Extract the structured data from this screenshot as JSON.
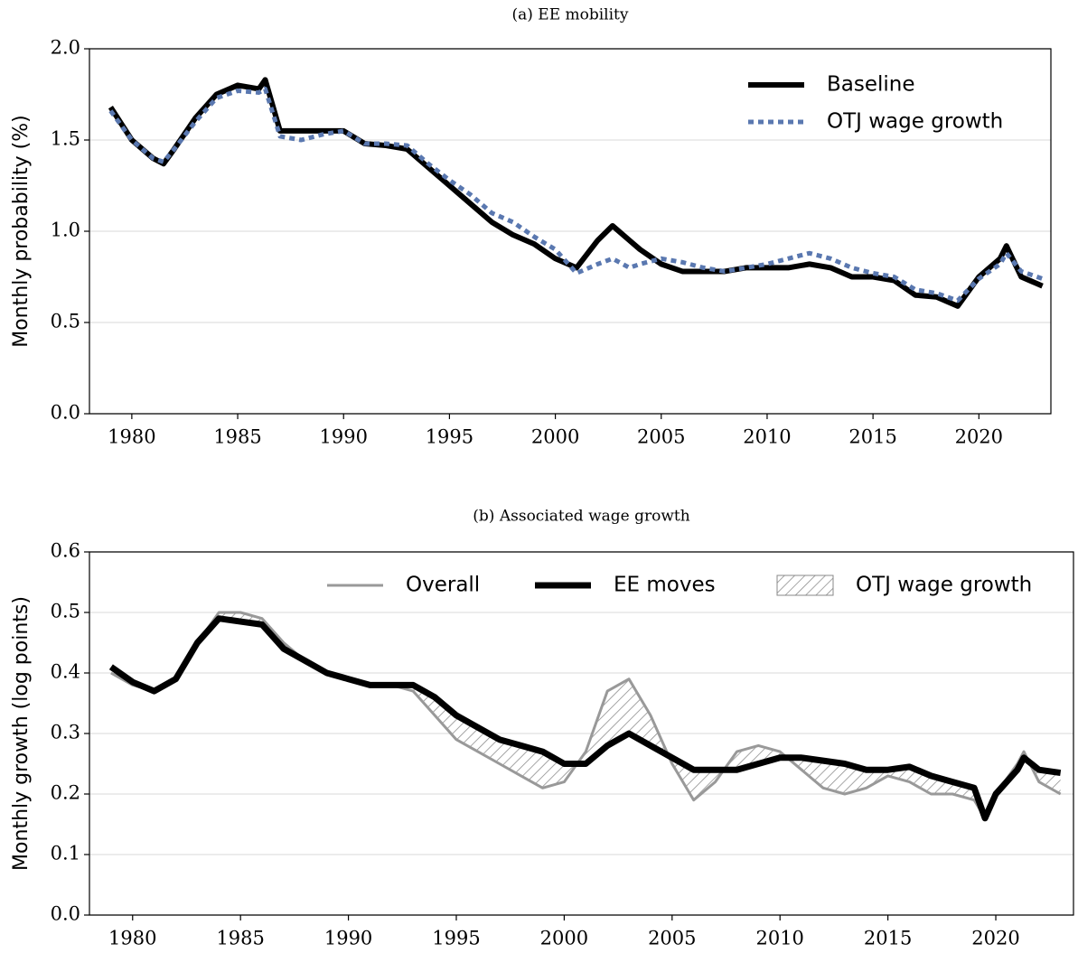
{
  "chart_data": [
    {
      "type": "line",
      "title": "(a) EE mobility",
      "ylabel": "Monthly probability (%)",
      "x": [
        1979,
        1980,
        1981,
        1981.5,
        1982,
        1983,
        1984,
        1985,
        1986,
        1986.3,
        1987,
        1988,
        1989,
        1990,
        1991,
        1992,
        1993,
        1994,
        1995,
        1996,
        1997,
        1998,
        1999,
        2000,
        2001,
        2002,
        2002.7,
        2003.5,
        2004,
        2005,
        2006,
        2007,
        2008,
        2009,
        2010,
        2011,
        2012,
        2013,
        2014,
        2015,
        2016,
        2017,
        2018,
        2019,
        2020,
        2021,
        2021.3,
        2022,
        2023
      ],
      "series": [
        {
          "name": "Baseline",
          "color": "#000000",
          "linewidth": 6,
          "linestyle": "solid",
          "values": [
            1.68,
            1.5,
            1.4,
            1.37,
            1.45,
            1.62,
            1.75,
            1.8,
            1.78,
            1.83,
            1.55,
            1.55,
            1.55,
            1.55,
            1.48,
            1.47,
            1.45,
            1.35,
            1.25,
            1.15,
            1.05,
            0.98,
            0.93,
            0.85,
            0.8,
            0.95,
            1.03,
            0.95,
            0.9,
            0.82,
            0.78,
            0.78,
            0.78,
            0.8,
            0.8,
            0.8,
            0.82,
            0.8,
            0.75,
            0.75,
            0.73,
            0.65,
            0.64,
            0.59,
            0.75,
            0.85,
            0.92,
            0.75,
            0.7
          ]
        },
        {
          "name": "OTJ wage growth",
          "color": "#5a78b0",
          "linewidth": 5,
          "linestyle": "dashed",
          "values": [
            1.66,
            1.5,
            1.4,
            1.38,
            1.45,
            1.6,
            1.73,
            1.77,
            1.76,
            1.78,
            1.52,
            1.5,
            1.53,
            1.55,
            1.48,
            1.48,
            1.47,
            1.37,
            1.28,
            1.2,
            1.1,
            1.05,
            0.97,
            0.9,
            0.77,
            0.82,
            0.85,
            0.8,
            0.82,
            0.85,
            0.83,
            0.8,
            0.78,
            0.8,
            0.82,
            0.85,
            0.88,
            0.85,
            0.8,
            0.77,
            0.75,
            0.68,
            0.66,
            0.62,
            0.74,
            0.82,
            0.88,
            0.78,
            0.74
          ]
        }
      ],
      "xlim": [
        1978,
        2023.4
      ],
      "xticks": [
        1980,
        1985,
        1990,
        1995,
        2000,
        2005,
        2010,
        2015,
        2020
      ],
      "ylim": [
        0,
        2
      ],
      "yticks": [
        {
          "value": 0,
          "label": "0.0"
        },
        0.5,
        {
          "value": 1,
          "label": "1.0"
        },
        1.5,
        {
          "value": 2,
          "label": "2.0"
        }
      ],
      "grid": "y",
      "legend": "upper right"
    },
    {
      "type": "line",
      "title": "(b) Associated wage growth",
      "ylabel": "Monthly growth (log points)",
      "x": [
        1979,
        1980,
        1981,
        1982,
        1983,
        1984,
        1985,
        1986,
        1987,
        1988,
        1989,
        1990,
        1991,
        1992,
        1993,
        1994,
        1995,
        1996,
        1997,
        1998,
        1999,
        2000,
        2001,
        2002,
        2003,
        2004,
        2005,
        2006,
        2007,
        2008,
        2009,
        2010,
        2011,
        2012,
        2013,
        2014,
        2015,
        2016,
        2017,
        2018,
        2019,
        2019.5,
        2020,
        2021,
        2021.3,
        2022,
        2023
      ],
      "series": [
        {
          "name": "Overall",
          "color": "#999999",
          "linewidth": 3,
          "linestyle": "solid",
          "values": [
            0.4,
            0.38,
            0.37,
            0.39,
            0.45,
            0.5,
            0.5,
            0.49,
            0.45,
            0.42,
            0.4,
            0.39,
            0.38,
            0.38,
            0.37,
            0.33,
            0.29,
            0.27,
            0.25,
            0.23,
            0.21,
            0.22,
            0.27,
            0.37,
            0.39,
            0.33,
            0.25,
            0.19,
            0.22,
            0.27,
            0.28,
            0.27,
            0.24,
            0.21,
            0.2,
            0.21,
            0.23,
            0.22,
            0.2,
            0.2,
            0.19,
            0.16,
            0.2,
            0.25,
            0.27,
            0.22,
            0.2
          ]
        },
        {
          "name": "EE moves",
          "color": "#000000",
          "linewidth": 7,
          "linestyle": "solid",
          "values": [
            0.41,
            0.385,
            0.37,
            0.39,
            0.45,
            0.49,
            0.485,
            0.48,
            0.44,
            0.42,
            0.4,
            0.39,
            0.38,
            0.38,
            0.38,
            0.36,
            0.33,
            0.31,
            0.29,
            0.28,
            0.27,
            0.25,
            0.25,
            0.28,
            0.3,
            0.28,
            0.26,
            0.24,
            0.24,
            0.24,
            0.25,
            0.26,
            0.26,
            0.255,
            0.25,
            0.24,
            0.24,
            0.245,
            0.23,
            0.22,
            0.21,
            0.16,
            0.2,
            0.24,
            0.26,
            0.24,
            0.235
          ]
        }
      ],
      "area_label": "OTJ wage growth",
      "xlim": [
        1978,
        2023.6
      ],
      "xticks": [
        1980,
        1985,
        1990,
        1995,
        2000,
        2005,
        2010,
        2015,
        2020
      ],
      "ylim": [
        0,
        0.6
      ],
      "yticks": [
        {
          "value": 0,
          "label": "0.0"
        },
        0.1,
        0.2,
        0.3,
        0.4,
        0.5,
        0.6
      ],
      "grid": "y",
      "legend": "upper center"
    }
  ]
}
